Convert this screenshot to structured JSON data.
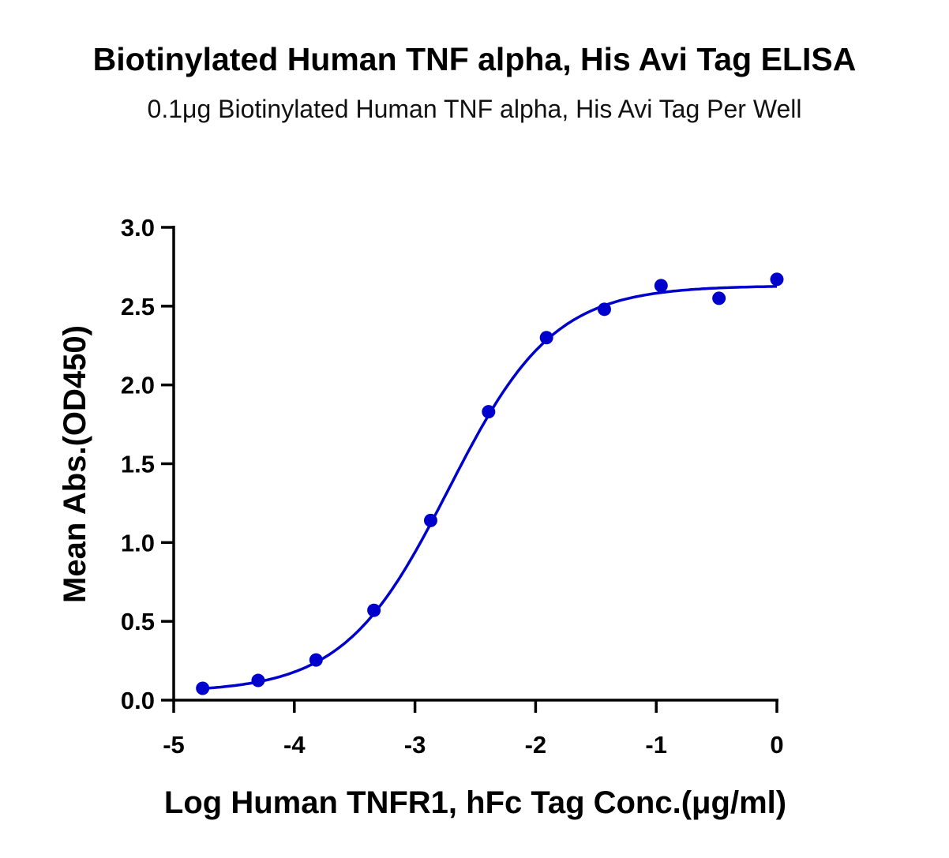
{
  "chart_data": {
    "type": "scatter",
    "title": "Biotinylated Human TNF alpha, His Avi Tag ELISA",
    "subtitle": "0.1μg Biotinylated Human TNF alpha, His Avi Tag Per Well",
    "xlabel": "Log Human TNFR1, hFc Tag Conc.(μg/ml)",
    "ylabel": "Mean Abs.(OD450)",
    "xlim": [
      -5,
      0
    ],
    "ylim": [
      0,
      3.0
    ],
    "xticks": [
      "-5",
      "-4",
      "-3",
      "-2",
      "-1",
      "0"
    ],
    "xtick_values": [
      -5,
      -4,
      -3,
      -2,
      -1,
      0
    ],
    "yticks": [
      "0.0",
      "0.5",
      "1.0",
      "1.5",
      "2.0",
      "2.5",
      "3.0"
    ],
    "ytick_values": [
      0,
      0.5,
      1.0,
      1.5,
      2.0,
      2.5,
      3.0
    ],
    "grid": false,
    "color": "#0000CC",
    "series": [
      {
        "name": "data",
        "x": [
          -4.76,
          -4.3,
          -3.82,
          -3.34,
          -2.87,
          -2.39,
          -1.91,
          -1.43,
          -0.96,
          -0.48,
          0.0
        ],
        "y": [
          0.075,
          0.125,
          0.255,
          0.57,
          1.14,
          1.83,
          2.3,
          2.48,
          2.63,
          2.55,
          2.67
        ]
      }
    ],
    "fit": {
      "model": "4PL",
      "bottom": 0.05,
      "top": 2.63,
      "logEC50": -2.72,
      "hill": 1.0,
      "x_range": [
        -4.76,
        0.0
      ]
    }
  }
}
